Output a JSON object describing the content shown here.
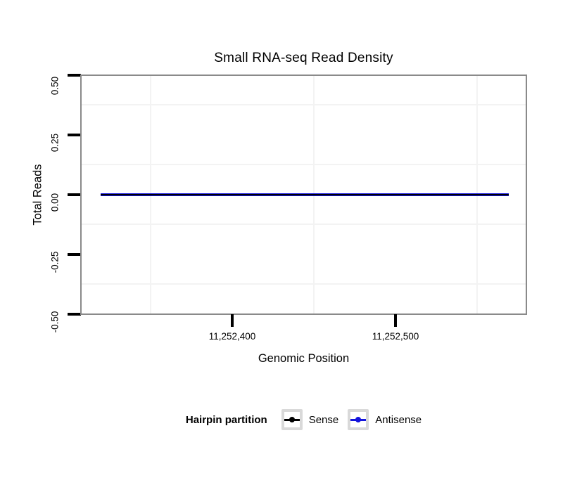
{
  "title": "Small RNA-seq Read Density",
  "axes": {
    "x": {
      "title": "Genomic Position",
      "ticks": [
        "11,252,400",
        "11,252,500"
      ]
    },
    "y": {
      "title": "Total Reads",
      "ticks": [
        "0.50",
        "0.25",
        "0.00",
        "-0.25",
        "-0.50"
      ]
    }
  },
  "legend": {
    "title": "Hairpin partition",
    "items": [
      {
        "label": "Sense",
        "color": "#000000"
      },
      {
        "label": "Antisense",
        "color": "#1414dd"
      }
    ]
  },
  "colors": {
    "background": "#ffffff",
    "panel_border": "#8a8a8a",
    "minor_gridline": "#f3f3f3",
    "tick": "#000000",
    "sense_line": "#000000",
    "antisense_line": "#1414dd",
    "legend_key_border": "#d9d9d9"
  },
  "chart_data": {
    "type": "line",
    "title": "Small RNA-seq Read Density",
    "xlabel": "Genomic Position",
    "ylabel": "Total Reads",
    "xlim": [
      11252307,
      11252580
    ],
    "ylim": [
      -0.5,
      0.5
    ],
    "x_ticks": [
      11252400,
      11252500
    ],
    "x_tick_labels": [
      "11,252,400",
      "11,252,500"
    ],
    "y_ticks": [
      0.5,
      0.25,
      0.0,
      -0.25,
      -0.5
    ],
    "y_tick_labels": [
      "0.50",
      "0.25",
      "0.00",
      "-0.25",
      "-0.50"
    ],
    "grid": "minor gridlines only (x minors at 11252350/11252450/11252550, y minors at ±0.125/±0.375)",
    "legend_position": "bottom",
    "legend_title": "Hairpin partition",
    "series": [
      {
        "name": "Sense",
        "color": "#000000",
        "x": [
          11252319,
          11252569
        ],
        "y": [
          0,
          0
        ],
        "note": "constant 0 across window, overplotted with Antisense"
      },
      {
        "name": "Antisense",
        "color": "#1414dd",
        "x": [
          11252319,
          11252569
        ],
        "y": [
          0,
          0
        ],
        "note": "constant 0 across window, overplotted with Sense"
      }
    ]
  }
}
